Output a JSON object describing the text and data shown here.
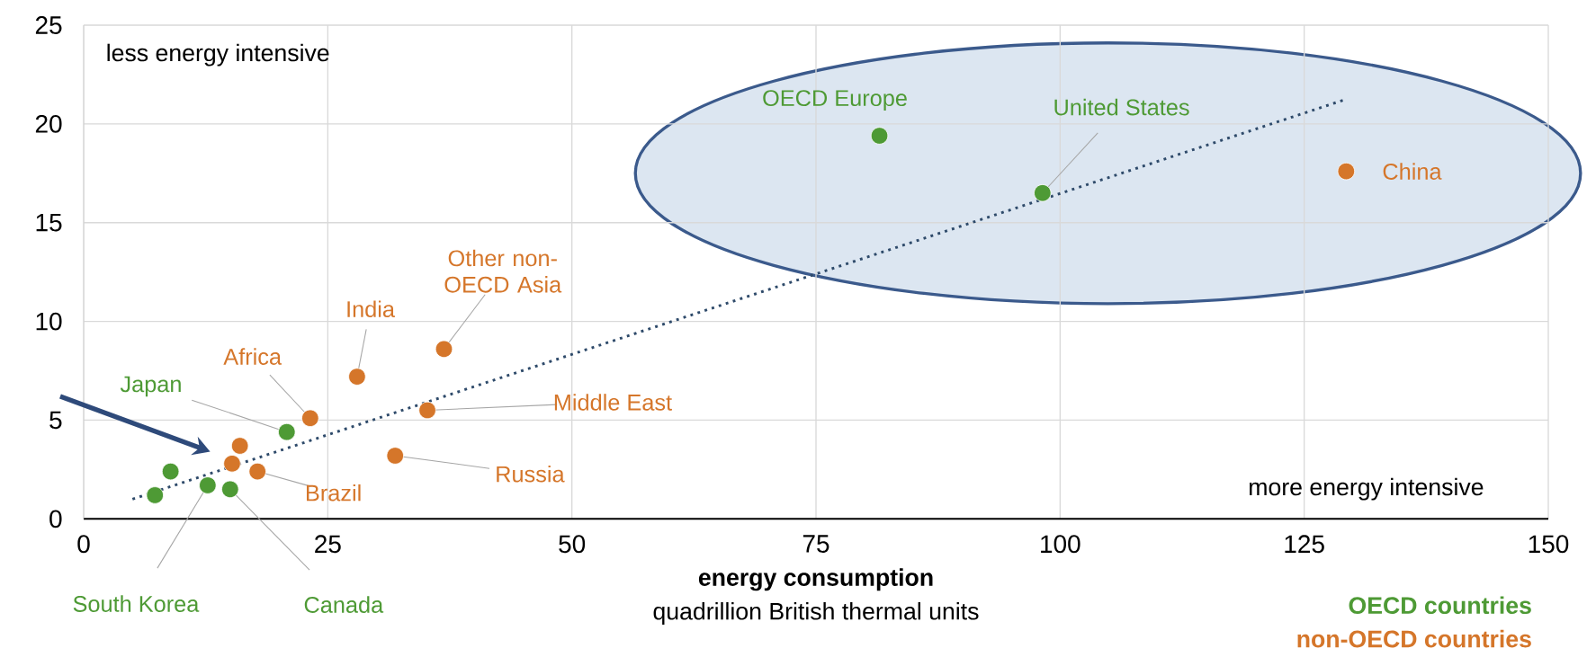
{
  "chart_data": {
    "type": "scatter",
    "xlabel": "energy consumption",
    "xlim": [
      0,
      150
    ],
    "xticks": [
      0,
      25,
      50,
      75,
      100,
      125,
      150
    ],
    "ylim": [
      0,
      25
    ],
    "yticks": [
      0,
      5,
      10,
      15,
      20,
      25
    ],
    "grid": true,
    "legend": "bottom right",
    "series": [
      {
        "name": "OECD countries",
        "color": "#4e9a35",
        "marker": "circle",
        "x": [
          81.5,
          98.2,
          20.8,
          12.7,
          15.0,
          7.3,
          8.9
        ],
        "values": [
          19.4,
          16.5,
          4.4,
          1.7,
          1.5,
          1.2,
          2.4
        ]
      },
      {
        "name": "non-OECD countries",
        "color": "#d5762a",
        "marker": "circle",
        "x": [
          129.3,
          36.9,
          28.0,
          23.2,
          35.2,
          31.9,
          17.8,
          16.0,
          15.2
        ],
        "values": [
          17.6,
          8.6,
          7.2,
          5.1,
          5.5,
          3.2,
          2.4,
          3.7,
          2.8
        ]
      },
      {
        "type": "line",
        "line_style": "dotted",
        "color": "#2e4a6a",
        "marker": "none",
        "x": [
          5.0,
          129.0
        ],
        "values": [
          1.0,
          21.2
        ]
      }
    ],
    "annotations": [
      "less energy intensive",
      "more energy intensive",
      "quadrillion British thermal units",
      {
        "text": "OECD Europe",
        "x": 81.5,
        "y": 19.4
      },
      {
        "text": "United States",
        "x": 98.2,
        "y": 16.5
      },
      {
        "text": "Japan",
        "x": 20.8,
        "y": 4.4
      },
      {
        "text": "South Korea",
        "x": 12.7,
        "y": 1.7
      },
      {
        "text": "Canada",
        "x": 15.0,
        "y": 1.5
      },
      {
        "text": "China",
        "x": 129.3,
        "y": 17.6
      },
      {
        "text": "Other non-OECD Asia",
        "x": 36.9,
        "y": 8.6
      },
      {
        "text": "India",
        "x": 28.0,
        "y": 7.2
      },
      {
        "text": "Africa",
        "x": 23.2,
        "y": 5.1
      },
      {
        "text": "Middle East",
        "x": 35.2,
        "y": 5.5
      },
      {
        "text": "Russia",
        "x": 31.9,
        "y": 3.2
      },
      {
        "text": "Brazil",
        "x": 17.8,
        "y": 2.4
      }
    ]
  }
}
